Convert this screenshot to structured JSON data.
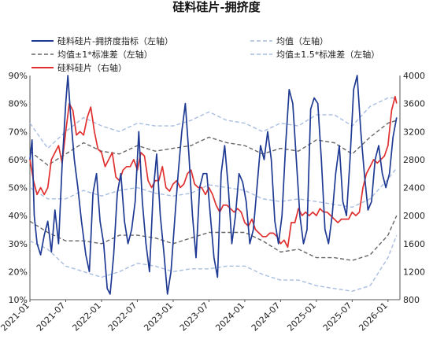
{
  "chart_data": {
    "type": "line",
    "title": "硅料硅片-拥挤度",
    "legend": [
      {
        "label": "硅料硅片-拥挤度指标（左轴）",
        "color": "#1f3a93",
        "style": "solid"
      },
      {
        "label": "均值（左轴）",
        "color": "#a9bde0",
        "style": "dashed"
      },
      {
        "label": "均值±1*标准差（左轴）",
        "color": "#666666",
        "style": "dashed"
      },
      {
        "label": "均值±1.5*标准差（左轴）",
        "color": "#a9bde0",
        "style": "dashed"
      },
      {
        "label": "硅料硅片（右轴）",
        "color": "#e03030",
        "style": "solid"
      }
    ],
    "legend_placement": "top",
    "y_left": {
      "min": 10,
      "max": 90,
      "ticks": [
        "10%",
        "20%",
        "30%",
        "40%",
        "50%",
        "60%",
        "70%",
        "80%",
        "90%"
      ]
    },
    "y_right": {
      "min": 800,
      "max": 4000,
      "ticks": [
        "800",
        "1200",
        "1600",
        "2000",
        "2400",
        "2800",
        "3200",
        "3600",
        "4000"
      ]
    },
    "x_ticks": [
      "2021-01",
      "2021-07",
      "2022-01",
      "2022-07",
      "2023-01",
      "2023-07",
      "2024-01",
      "2024-07",
      "2025-01",
      "2025-07",
      "2026-01"
    ],
    "x_range": [
      "2021-01",
      "2026-03"
    ],
    "series": [
      {
        "name": "硅料硅片-拥挤度指标（左轴）",
        "axis": "left",
        "x": [
          2021.0,
          2021.03,
          2021.06,
          2021.1,
          2021.15,
          2021.2,
          2021.25,
          2021.3,
          2021.35,
          2021.4,
          2021.45,
          2021.5,
          2021.53,
          2021.57,
          2021.62,
          2021.67,
          2021.72,
          2021.78,
          2021.83,
          2021.88,
          2021.93,
          2021.98,
          2022.03,
          2022.08,
          2022.12,
          2022.17,
          2022.22,
          2022.27,
          2022.32,
          2022.37,
          2022.42,
          2022.47,
          2022.52,
          2022.57,
          2022.62,
          2022.67,
          2022.72,
          2022.77,
          2022.82,
          2022.87,
          2022.92,
          2022.97,
          2023.02,
          2023.07,
          2023.12,
          2023.17,
          2023.22,
          2023.27,
          2023.32,
          2023.37,
          2023.42,
          2023.47,
          2023.52,
          2023.57,
          2023.62,
          2023.67,
          2023.72,
          2023.77,
          2023.82,
          2023.87,
          2023.92,
          2023.97,
          2024.02,
          2024.07,
          2024.12,
          2024.17,
          2024.22,
          2024.27,
          2024.32,
          2024.37,
          2024.42,
          2024.47,
          2024.52,
          2024.57,
          2024.62,
          2024.67,
          2024.72,
          2024.77,
          2024.82,
          2024.87,
          2024.92,
          2024.97,
          2025.02,
          2025.07,
          2025.12,
          2025.17,
          2025.22,
          2025.27,
          2025.32,
          2025.37,
          2025.42,
          2025.47,
          2025.52,
          2025.57,
          2025.62,
          2025.67,
          2025.72,
          2025.77,
          2025.82,
          2025.87,
          2025.92,
          2025.97,
          2026.02,
          2026.07,
          2026.12
        ],
        "values": [
          60,
          67,
          40,
          30,
          26,
          33,
          38,
          27,
          42,
          30,
          58,
          80,
          90,
          75,
          60,
          50,
          38,
          26,
          20,
          48,
          55,
          38,
          30,
          14,
          12,
          26,
          48,
          55,
          38,
          30,
          35,
          45,
          70,
          45,
          30,
          20,
          48,
          62,
          40,
          27,
          12,
          20,
          38,
          55,
          70,
          80,
          62,
          40,
          25,
          50,
          55,
          55,
          40,
          25,
          18,
          55,
          65,
          50,
          30,
          40,
          55,
          52,
          45,
          30,
          35,
          50,
          65,
          60,
          70,
          60,
          38,
          30,
          40,
          65,
          85,
          80,
          60,
          40,
          30,
          35,
          78,
          82,
          80,
          60,
          35,
          30,
          40,
          55,
          65,
          45,
          40,
          60,
          85,
          90,
          70,
          55,
          42,
          45,
          60,
          65,
          55,
          50,
          55,
          68,
          75
        ]
      },
      {
        "name": "硅料硅片（右轴）",
        "axis": "right",
        "x": [
          2021.0,
          2021.05,
          2021.1,
          2021.15,
          2021.2,
          2021.25,
          2021.3,
          2021.35,
          2021.4,
          2021.45,
          2021.5,
          2021.55,
          2021.6,
          2021.65,
          2021.7,
          2021.75,
          2021.8,
          2021.85,
          2021.9,
          2021.95,
          2022.0,
          2022.05,
          2022.1,
          2022.15,
          2022.2,
          2022.25,
          2022.3,
          2022.35,
          2022.4,
          2022.45,
          2022.5,
          2022.55,
          2022.6,
          2022.65,
          2022.7,
          2022.75,
          2022.8,
          2022.85,
          2022.9,
          2022.95,
          2023.0,
          2023.05,
          2023.1,
          2023.15,
          2023.2,
          2023.25,
          2023.3,
          2023.35,
          2023.4,
          2023.45,
          2023.5,
          2023.55,
          2023.6,
          2023.65,
          2023.7,
          2023.75,
          2023.8,
          2023.85,
          2023.9,
          2023.95,
          2024.0,
          2024.05,
          2024.1,
          2024.15,
          2024.2,
          2024.25,
          2024.3,
          2024.35,
          2024.4,
          2024.45,
          2024.5,
          2024.55,
          2024.6,
          2024.65,
          2024.7,
          2024.75,
          2024.8,
          2024.85,
          2024.9,
          2024.95,
          2025.0,
          2025.05,
          2025.1,
          2025.15,
          2025.2,
          2025.25,
          2025.3,
          2025.35,
          2025.4,
          2025.45,
          2025.5,
          2025.55,
          2025.6,
          2025.65,
          2025.7,
          2025.75,
          2025.8,
          2025.85,
          2025.9,
          2025.95,
          2026.0,
          2026.05,
          2026.1,
          2026.12
        ],
        "values": [
          2800,
          2500,
          2300,
          2400,
          2300,
          2400,
          2800,
          2900,
          3000,
          2750,
          3200,
          3600,
          3500,
          3150,
          3200,
          3150,
          3400,
          3550,
          3200,
          2950,
          2900,
          2700,
          2800,
          2900,
          2550,
          2500,
          2650,
          2700,
          2700,
          2800,
          2650,
          2900,
          2850,
          2500,
          2400,
          2500,
          2500,
          2700,
          2400,
          2350,
          2450,
          2500,
          2400,
          2450,
          2600,
          2650,
          2450,
          2400,
          2400,
          2300,
          2400,
          2300,
          2150,
          2050,
          2150,
          2150,
          2100,
          2050,
          2100,
          2050,
          1900,
          1850,
          1950,
          1800,
          1750,
          1700,
          1700,
          1750,
          1750,
          1700,
          1600,
          1650,
          1550,
          1900,
          1900,
          2100,
          2000,
          2050,
          2000,
          2050,
          2000,
          2100,
          2050,
          2050,
          2000,
          1950,
          1900,
          1950,
          1950,
          1950,
          2050,
          2000,
          2050,
          2400,
          2600,
          2700,
          2800,
          2750,
          2800,
          2850,
          3000,
          3500,
          3700,
          3600
        ]
      },
      {
        "name": "均值（左轴）",
        "axis": "left",
        "x": [
          2021.0,
          2021.25,
          2021.5,
          2021.75,
          2022.0,
          2022.25,
          2022.5,
          2022.75,
          2023.0,
          2023.25,
          2023.5,
          2023.75,
          2024.0,
          2024.25,
          2024.5,
          2024.75,
          2025.0,
          2025.25,
          2025.5,
          2025.75,
          2026.0,
          2026.12
        ],
        "values": [
          50,
          46,
          46,
          49,
          47,
          49,
          50,
          48,
          47,
          48,
          51,
          50,
          49,
          46,
          45,
          46,
          45,
          44,
          43,
          46,
          53,
          57
        ]
      },
      {
        "name": "均值+1*标准差（左轴）",
        "axis": "left",
        "x": [
          2021.0,
          2021.25,
          2021.5,
          2021.75,
          2022.0,
          2022.25,
          2022.5,
          2022.75,
          2023.0,
          2023.25,
          2023.5,
          2023.75,
          2024.0,
          2024.25,
          2024.5,
          2024.75,
          2025.0,
          2025.25,
          2025.5,
          2025.75,
          2026.0,
          2026.12
        ],
        "values": [
          63,
          58,
          62,
          66,
          63,
          62,
          65,
          63,
          64,
          65,
          68,
          66,
          65,
          62,
          64,
          63,
          67,
          66,
          62,
          68,
          73,
          74
        ]
      },
      {
        "name": "均值-1*标准差（左轴）",
        "axis": "left",
        "x": [
          2021.0,
          2021.25,
          2021.5,
          2021.75,
          2022.0,
          2022.25,
          2022.5,
          2022.75,
          2023.0,
          2023.25,
          2023.5,
          2023.75,
          2024.0,
          2024.25,
          2024.5,
          2024.75,
          2025.0,
          2025.25,
          2025.5,
          2025.75,
          2026.0,
          2026.12
        ],
        "values": [
          38,
          34,
          31,
          31,
          30,
          33,
          33,
          32,
          30,
          32,
          34,
          34,
          34,
          31,
          27,
          28,
          25,
          25,
          24,
          26,
          33,
          40
        ]
      },
      {
        "name": "均值+1.5*标准差（左轴）",
        "axis": "left",
        "x": [
          2021.0,
          2021.25,
          2021.5,
          2021.75,
          2022.0,
          2022.25,
          2022.5,
          2022.75,
          2023.0,
          2023.25,
          2023.5,
          2023.75,
          2024.0,
          2024.25,
          2024.5,
          2024.75,
          2025.0,
          2025.25,
          2025.5,
          2025.75,
          2026.0,
          2026.12
        ],
        "values": [
          73,
          64,
          70,
          75,
          72,
          70,
          73,
          72,
          72,
          74,
          77,
          74,
          73,
          70,
          73,
          72,
          76,
          76,
          72,
          79,
          82,
          82
        ]
      },
      {
        "name": "均值-1.5*标准差（左轴）",
        "axis": "left",
        "x": [
          2021.0,
          2021.25,
          2021.5,
          2021.75,
          2022.0,
          2022.25,
          2022.5,
          2022.75,
          2023.0,
          2023.25,
          2023.5,
          2023.75,
          2024.0,
          2024.25,
          2024.5,
          2024.75,
          2025.0,
          2025.25,
          2025.5,
          2025.75,
          2026.0,
          2026.12
        ],
        "values": [
          31,
          28,
          22,
          20,
          18,
          20,
          23,
          22,
          20,
          21,
          21,
          22,
          22,
          19,
          17,
          17,
          15,
          14,
          13,
          15,
          25,
          33
        ]
      }
    ]
  }
}
